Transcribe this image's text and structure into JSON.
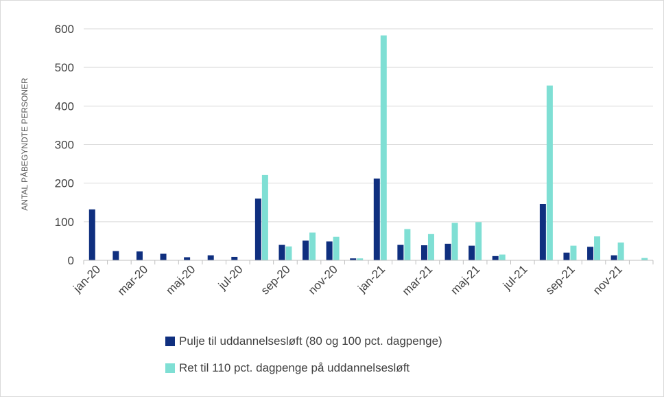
{
  "chart_data": {
    "type": "bar",
    "ylabel": "ANTAL PÅBEGYNDTE PERSONER",
    "xlabel": "",
    "ylim": [
      0,
      600
    ],
    "yticks": [
      0,
      100,
      200,
      300,
      400,
      500,
      600
    ],
    "grid": true,
    "legend_position": "bottom",
    "categories": [
      "jan-20",
      "feb-20",
      "mar-20",
      "apr-20",
      "maj-20",
      "jun-20",
      "jul-20",
      "aug-20",
      "sep-20",
      "okt-20",
      "nov-20",
      "dec-20",
      "jan-21",
      "feb-21",
      "mar-21",
      "apr-21",
      "maj-21",
      "jun-21",
      "jul-21",
      "aug-21",
      "sep-21",
      "okt-21",
      "nov-21",
      "dec-21"
    ],
    "tick_labels": [
      "jan-20",
      "",
      "mar-20",
      "",
      "maj-20",
      "",
      "jul-20",
      "",
      "sep-20",
      "",
      "nov-20",
      "",
      "jan-21",
      "",
      "mar-21",
      "",
      "maj-21",
      "",
      "jul-21",
      "",
      "sep-21",
      "",
      "nov-21",
      ""
    ],
    "series": [
      {
        "name": "Pulje til uddannelsesløft (80 og 100 pct. dagpenge)",
        "color": "#0f2f7f",
        "values": [
          132,
          24,
          23,
          17,
          8,
          13,
          9,
          160,
          40,
          51,
          49,
          5,
          212,
          40,
          39,
          43,
          38,
          11,
          0,
          146,
          20,
          35,
          13,
          0
        ]
      },
      {
        "name": "Ret til 110 pct. dagpenge på uddannelsesløft",
        "color": "#7fdfd4",
        "values": [
          0,
          0,
          0,
          0,
          0,
          0,
          0,
          221,
          36,
          72,
          61,
          5,
          583,
          81,
          68,
          97,
          99,
          15,
          0,
          453,
          38,
          62,
          46,
          6
        ]
      }
    ]
  }
}
